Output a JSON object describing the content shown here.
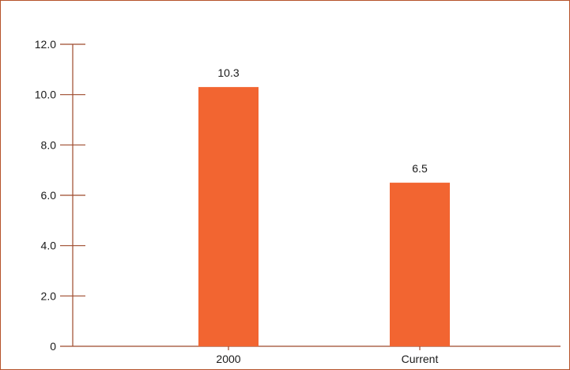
{
  "chart_data": {
    "type": "bar",
    "categories": [
      "2000",
      "Current"
    ],
    "values": [
      10.3,
      6.5
    ],
    "data_labels": [
      "10.3",
      "6.5"
    ],
    "title": "",
    "xlabel": "",
    "ylabel": "",
    "ylim": [
      0,
      12
    ],
    "y_ticks": [
      0,
      2,
      4,
      6,
      8,
      10,
      12
    ],
    "y_tick_labels": [
      "0",
      "2.0",
      "4.0",
      "6.0",
      "8.0",
      "10.0",
      "12.0"
    ],
    "grid": false,
    "legend": "none",
    "colors": {
      "bar": "#f26531",
      "axis": "#9e4a2c",
      "frame": "#b5532b",
      "text": "#1a1a1a"
    }
  }
}
